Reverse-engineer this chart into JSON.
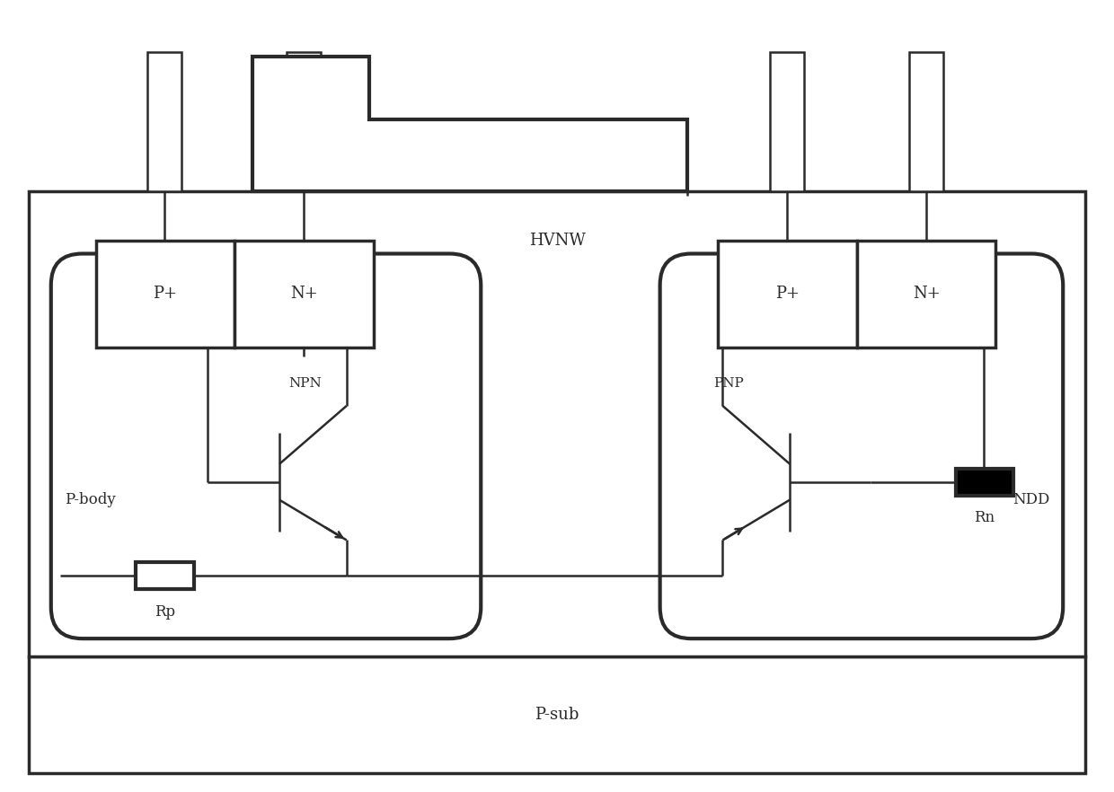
{
  "bg_color": "#ffffff",
  "lc": "#2a2a2a",
  "lw_main": 2.5,
  "lw_thin": 1.8,
  "lw_wire": 1.8,
  "fig_width": 12.4,
  "fig_height": 8.82,
  "labels": {
    "P_plus_left": "P+",
    "N_plus_left": "N+",
    "P_plus_right": "P+",
    "N_plus_right": "N+",
    "NPN": "NPN",
    "PNP": "PNP",
    "Rp": "Rp",
    "Rn": "Rn",
    "P_body": "P-body",
    "NDD": "NDD",
    "HVNW": "HVNW",
    "P_sub": "P-sub"
  },
  "font_size_label": 13,
  "font_size_region": 12,
  "font_size_transistor": 11
}
